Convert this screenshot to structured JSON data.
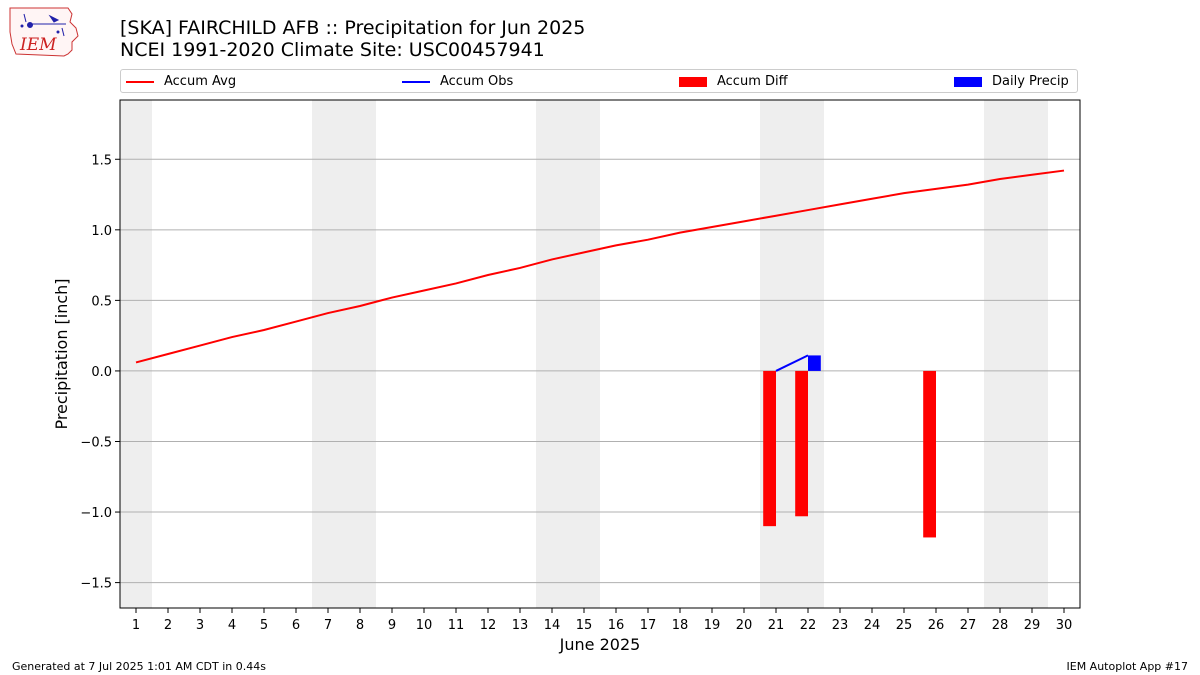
{
  "header": {
    "title_line1": "[SKA] FAIRCHILD AFB :: Precipitation for Jun 2025",
    "title_line2": "NCEI 1991-2020 Climate Site: USC00457941",
    "logo_text": "IEM"
  },
  "legend": {
    "placement": "top, horizontal",
    "items": [
      {
        "label": "Accum Avg",
        "kind": "line",
        "color": "#ff0000"
      },
      {
        "label": "Accum Obs",
        "kind": "line",
        "color": "#0000ff"
      },
      {
        "label": "Accum Diff",
        "kind": "bar",
        "color": "#ff0000"
      },
      {
        "label": "Daily Precip",
        "kind": "bar",
        "color": "#0000ff"
      }
    ]
  },
  "footer": {
    "left": "Generated at 7 Jul 2025 1:01 AM CDT in 0.44s",
    "right": "IEM Autoplot App #17"
  },
  "chart_data": {
    "type": "line",
    "xlabel": "June 2025",
    "ylabel": "Precipitation [inch]",
    "xlim": [
      0.5,
      30.5
    ],
    "ylim": [
      -1.68,
      1.92
    ],
    "x": [
      1,
      2,
      3,
      4,
      5,
      6,
      7,
      8,
      9,
      10,
      11,
      12,
      13,
      14,
      15,
      16,
      17,
      18,
      19,
      20,
      21,
      22,
      23,
      24,
      25,
      26,
      27,
      28,
      29,
      30
    ],
    "x_tick_labels": [
      "1",
      "2",
      "3",
      "4",
      "5",
      "6",
      "7",
      "8",
      "9",
      "10",
      "11",
      "12",
      "13",
      "14",
      "15",
      "16",
      "17",
      "18",
      "19",
      "20",
      "21",
      "22",
      "23",
      "24",
      "25",
      "26",
      "27",
      "28",
      "29",
      "30"
    ],
    "y_ticks": [
      -1.5,
      -1.0,
      -0.5,
      0.0,
      0.5,
      1.0,
      1.5
    ],
    "y_tick_labels": [
      "−1.5",
      "−1.0",
      "−0.5",
      "0.0",
      "0.5",
      "1.0",
      "1.5"
    ],
    "grid": "horizontal",
    "weekend_shading": [
      [
        0.5,
        1.5
      ],
      [
        6.5,
        8.5
      ],
      [
        13.5,
        15.5
      ],
      [
        20.5,
        22.5
      ],
      [
        27.5,
        29.5
      ]
    ],
    "shading_color": "#eeeeee",
    "series": [
      {
        "name": "Accum Avg",
        "kind": "line",
        "color": "#ff0000",
        "x": [
          1,
          2,
          3,
          4,
          5,
          6,
          7,
          8,
          9,
          10,
          11,
          12,
          13,
          14,
          15,
          16,
          17,
          18,
          19,
          20,
          21,
          22,
          23,
          24,
          25,
          26,
          27,
          28,
          29,
          30
        ],
        "values": [
          0.06,
          0.12,
          0.18,
          0.24,
          0.29,
          0.35,
          0.41,
          0.46,
          0.52,
          0.57,
          0.62,
          0.68,
          0.73,
          0.79,
          0.84,
          0.89,
          0.93,
          0.98,
          1.02,
          1.06,
          1.1,
          1.14,
          1.18,
          1.22,
          1.26,
          1.29,
          1.32,
          1.36,
          1.39,
          1.42
        ]
      },
      {
        "name": "Accum Obs",
        "kind": "line",
        "color": "#0000ff",
        "x": [
          21,
          22
        ],
        "values": [
          0.0,
          0.11
        ]
      },
      {
        "name": "Accum Diff",
        "kind": "bar",
        "color": "#ff0000",
        "offset": -0.2,
        "x": [
          21,
          22,
          26
        ],
        "values": [
          -1.1,
          -1.03,
          -1.18
        ]
      },
      {
        "name": "Daily Precip",
        "kind": "bar",
        "color": "#0000ff",
        "offset": 0.2,
        "x": [
          22
        ],
        "values": [
          0.11
        ]
      }
    ]
  }
}
